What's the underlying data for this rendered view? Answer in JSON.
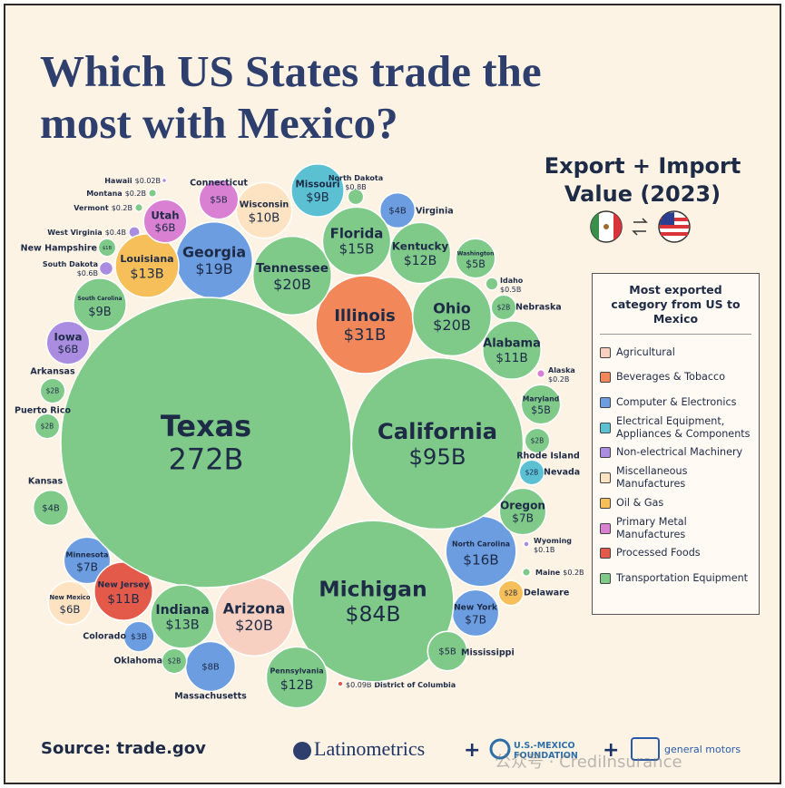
{
  "chart_data": {
    "type": "packed_bubble",
    "title": "Which US States trade the most with Mexico?",
    "subtitle": "Export + Import Value (2023)",
    "legend_title": "Most exported category from US to Mexico",
    "source": "Source: trade.gov",
    "logos": [
      "Latinometrics",
      "+",
      "U.S.-MEXICO FOUNDATION",
      "+",
      "general motors"
    ],
    "watermark": "公众号 · CrediInsurance",
    "series": [
      {
        "name": "Agricultural",
        "color": "#f8d0c2",
        "names": [
          "Arizona"
        ],
        "values": [
          20
        ],
        "value_labels": [
          "$20B"
        ]
      },
      {
        "name": "Beverages & Tobacco",
        "color": "#f2875a",
        "names": [
          "Illinois"
        ],
        "values": [
          31
        ],
        "value_labels": [
          "$31B"
        ]
      },
      {
        "name": "Computer & Electronics",
        "color": "#6c9de0",
        "names": [
          "Georgia",
          "Virginia",
          "North Carolina",
          "New York",
          "Minnesota",
          "Colorado",
          "Massachusetts"
        ],
        "values": [
          19,
          4,
          16,
          7,
          7,
          3,
          8
        ],
        "value_labels": [
          "$19B",
          "$4B",
          "$16B",
          "$7B",
          "$7B",
          "$3B",
          "$8B"
        ]
      },
      {
        "name": "Electrical Equipment, Appliances & Components",
        "color": "#5cc0d3",
        "names": [
          "Missouri",
          "Nevada"
        ],
        "values": [
          9,
          2
        ],
        "value_labels": [
          "$9B",
          "$2B"
        ]
      },
      {
        "name": "Non-electrical Machinery",
        "color": "#aa8de0",
        "names": [
          "Iowa",
          "West Virginia",
          "South Dakota",
          "Wyoming",
          "Hawaii"
        ],
        "values": [
          6,
          0.4,
          0.6,
          0.1,
          0.02
        ],
        "value_labels": [
          "$6B",
          "$0.4B",
          "$0.6B",
          "$0.1B",
          "$0.02B"
        ]
      },
      {
        "name": "Miscellaneous Manufactures",
        "color": "#fde3c2",
        "names": [
          "Wisconsin",
          "New Mexico"
        ],
        "values": [
          10,
          6
        ],
        "value_labels": [
          "$10B",
          "$6B"
        ]
      },
      {
        "name": "Oil & Gas",
        "color": "#f6bf59",
        "names": [
          "Louisiana",
          "Delaware"
        ],
        "values": [
          13,
          2
        ],
        "value_labels": [
          "$13B",
          "$2B"
        ]
      },
      {
        "name": "Primary Metal Manufactures",
        "color": "#d980d3",
        "names": [
          "Connecticut",
          "Utah",
          "Alaska"
        ],
        "values": [
          5,
          6,
          0.2
        ],
        "value_labels": [
          "$5B",
          "$6B",
          "$0.2B"
        ]
      },
      {
        "name": "Processed Foods",
        "color": "#e35a4a",
        "names": [
          "New Jersey",
          "District of Columbia"
        ],
        "values": [
          11,
          0.09
        ],
        "value_labels": [
          "$11B",
          "$0.09B"
        ]
      },
      {
        "name": "Transportation Equipment",
        "color": "#80ca89",
        "names": [
          "Texas",
          "California",
          "Michigan",
          "Tennessee",
          "Florida",
          "Kentucky",
          "Washington",
          "Ohio",
          "Idaho",
          "Nebraska",
          "Alabama",
          "Maryland",
          "Rhode Island",
          "Oregon",
          "Maine",
          "Mississippi",
          "Pennsylvania",
          "Indiana",
          "South Carolina",
          "Arkansas",
          "Puerto Rico",
          "Kansas",
          "New Hampshire",
          "Vermont",
          "Montana",
          "North Dakota",
          "Oklahoma"
        ],
        "values": [
          272,
          95,
          84,
          20,
          15,
          12,
          5,
          20,
          0.5,
          2,
          11,
          5,
          2,
          7,
          0.2,
          5,
          12,
          13,
          9,
          2,
          2,
          4,
          1,
          0.2,
          0.2,
          0.8,
          2
        ],
        "value_labels": [
          "272B",
          "$95B",
          "$84B",
          "$20B",
          "$15B",
          "$12B",
          "$5B",
          "$20B",
          "$0.5B",
          "$2B",
          "$11B",
          "$5B",
          "$2B",
          "$7B",
          "$0.2B",
          "$5B",
          "$12B",
          "$13B",
          "$9B",
          "$2B",
          "$2B",
          "$4B",
          "$1B",
          "$0.2B",
          "$0.2B",
          "$0.8B",
          "$2B"
        ]
      }
    ]
  }
}
